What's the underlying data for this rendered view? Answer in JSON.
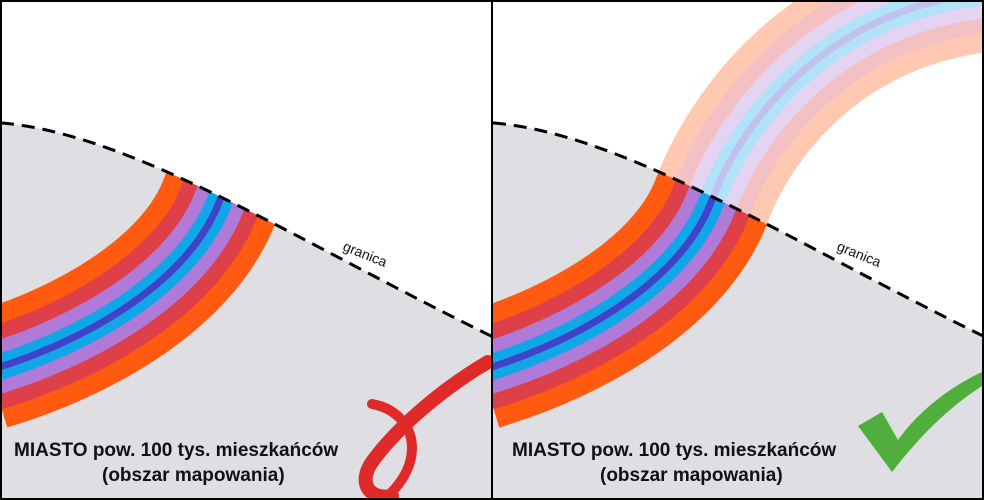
{
  "panels": [
    {
      "id": "left",
      "caption_line1": "MIASTO pow. 100 tys. mieszkańców",
      "caption_line2": "(obszar mapowania)",
      "border_label": "granica",
      "bands_beyond_border": false,
      "verdict": "incorrect",
      "verdict_icon": "cross-icon"
    },
    {
      "id": "right",
      "caption_line1": "MIASTO pow. 100 tys. mieszkańców",
      "caption_line2": "(obszar mapowania)",
      "border_label": "granica",
      "bands_beyond_border": true,
      "verdict": "correct",
      "verdict_icon": "checkmark-icon"
    }
  ],
  "colors": {
    "city_area": "#dedee3",
    "band_outer": "#ff5a10",
    "band_2": "#dd4048",
    "band_3": "#b07ad8",
    "band_4": "#10a6e8",
    "band_center": "#4242c8",
    "cross": "#e02a2a",
    "checkmark": "#4fae3c",
    "border_line": "#000000"
  }
}
